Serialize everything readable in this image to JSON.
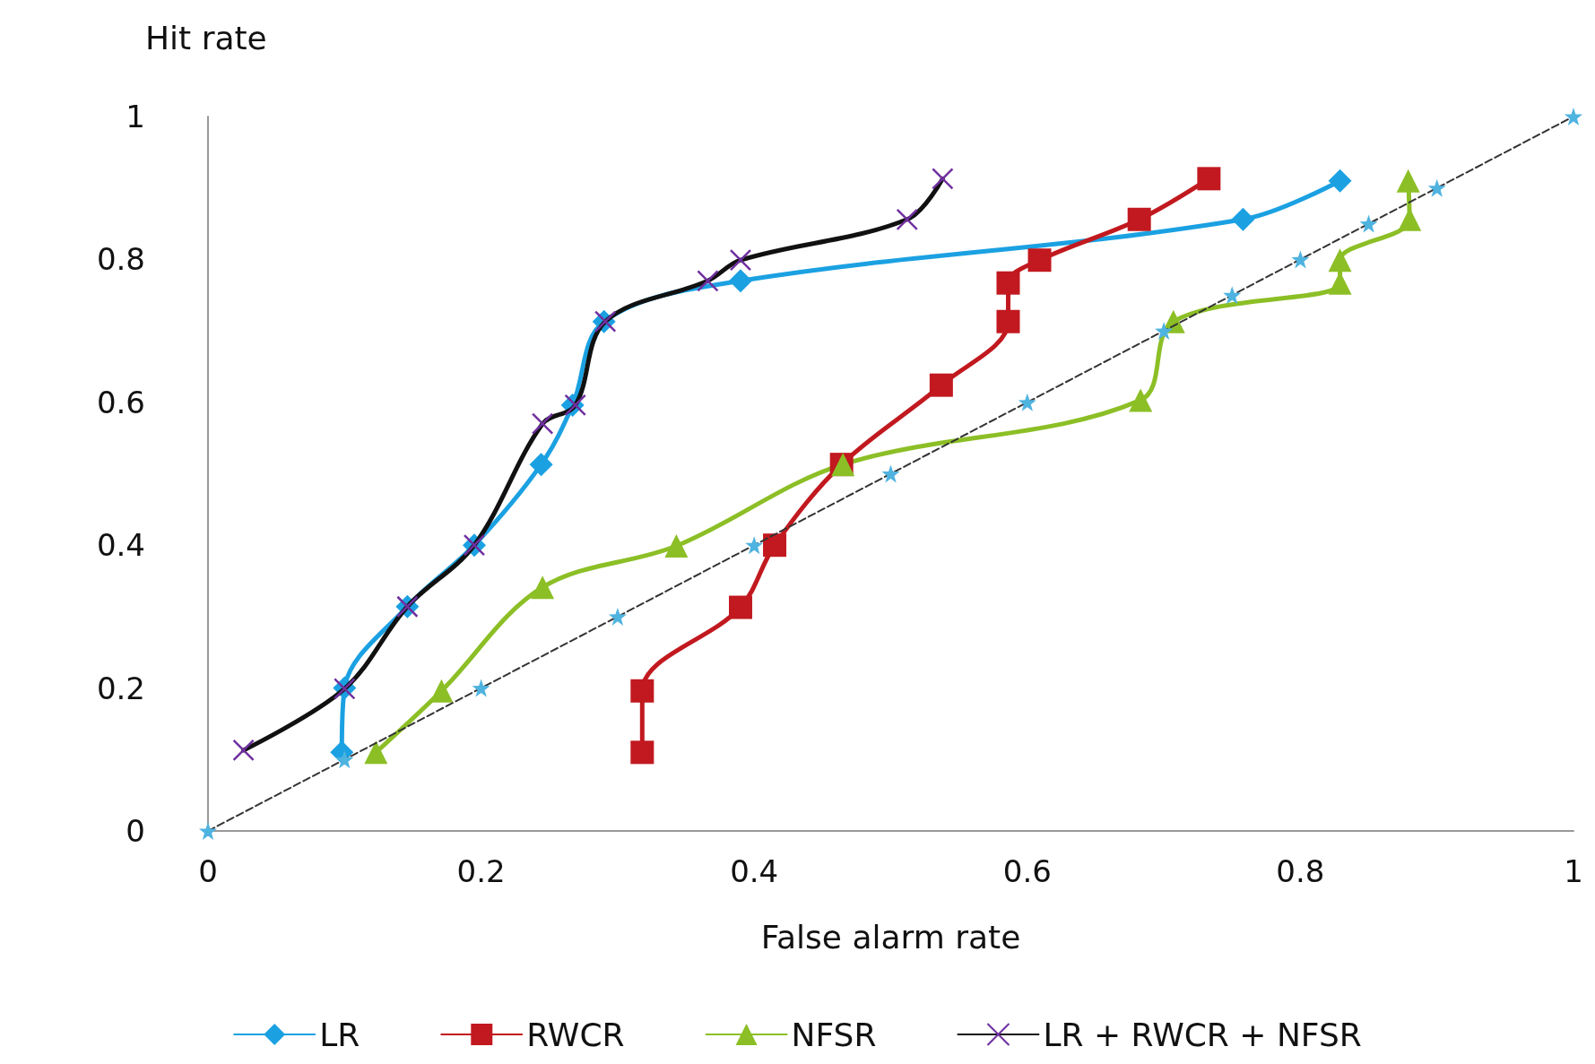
{
  "chart_data": {
    "type": "line",
    "xlabel": "False alarm rate",
    "ylabel": "Hit rate",
    "xlim": [
      0,
      1
    ],
    "ylim": [
      0,
      1
    ],
    "xticks": [
      0,
      0.2,
      0.4,
      0.6,
      0.8,
      1
    ],
    "yticks": [
      0,
      0.2,
      0.4,
      0.6,
      0.8,
      1
    ],
    "grid": false,
    "legend": "bottom",
    "line_style": "solid",
    "series": [
      {
        "name": "LR",
        "color": "#1ba1e2",
        "marker": "diamond",
        "x": [
          0.098,
          0.1,
          0.146,
          0.195,
          0.244,
          0.267,
          0.29,
          0.39,
          0.758,
          0.829
        ],
        "values": [
          0.11,
          0.2,
          0.314,
          0.4,
          0.513,
          0.596,
          0.713,
          0.77,
          0.856,
          0.91
        ]
      },
      {
        "name": "RWCR",
        "color": "#c1191f",
        "marker": "square",
        "x": [
          0.318,
          0.318,
          0.39,
          0.415,
          0.464,
          0.537,
          0.586,
          0.586,
          0.609,
          0.682,
          0.733
        ],
        "values": [
          0.11,
          0.196,
          0.313,
          0.4,
          0.513,
          0.624,
          0.713,
          0.767,
          0.799,
          0.856,
          0.913
        ]
      },
      {
        "name": "NFSR",
        "color": "#8cbf26",
        "marker": "triangle",
        "x": [
          0.123,
          0.171,
          0.245,
          0.343,
          0.465,
          0.683,
          0.707,
          0.829,
          0.829,
          0.88,
          0.879
        ],
        "values": [
          0.11,
          0.196,
          0.341,
          0.399,
          0.513,
          0.603,
          0.713,
          0.767,
          0.799,
          0.856,
          0.91
        ]
      },
      {
        "name": "LR + RWCR + NFSR",
        "color": "#111111",
        "marker": "cross",
        "x": [
          0.026,
          0.1,
          0.146,
          0.195,
          0.245,
          0.269,
          0.291,
          0.366,
          0.39,
          0.512,
          0.538
        ],
        "values": [
          0.113,
          0.199,
          0.314,
          0.4,
          0.57,
          0.596,
          0.713,
          0.77,
          0.799,
          0.856,
          0.913
        ]
      },
      {
        "color": "#4fb3e0",
        "marker": "star",
        "line_style": "dashed",
        "x": [
          0,
          0.1,
          0.2,
          0.3,
          0.4,
          0.5,
          0.6,
          0.7,
          0.75,
          0.8,
          0.85,
          0.9,
          1
        ],
        "values": [
          0,
          0.1,
          0.2,
          0.3,
          0.4,
          0.5,
          0.6,
          0.7,
          0.75,
          0.8,
          0.85,
          0.9,
          1
        ]
      }
    ]
  }
}
